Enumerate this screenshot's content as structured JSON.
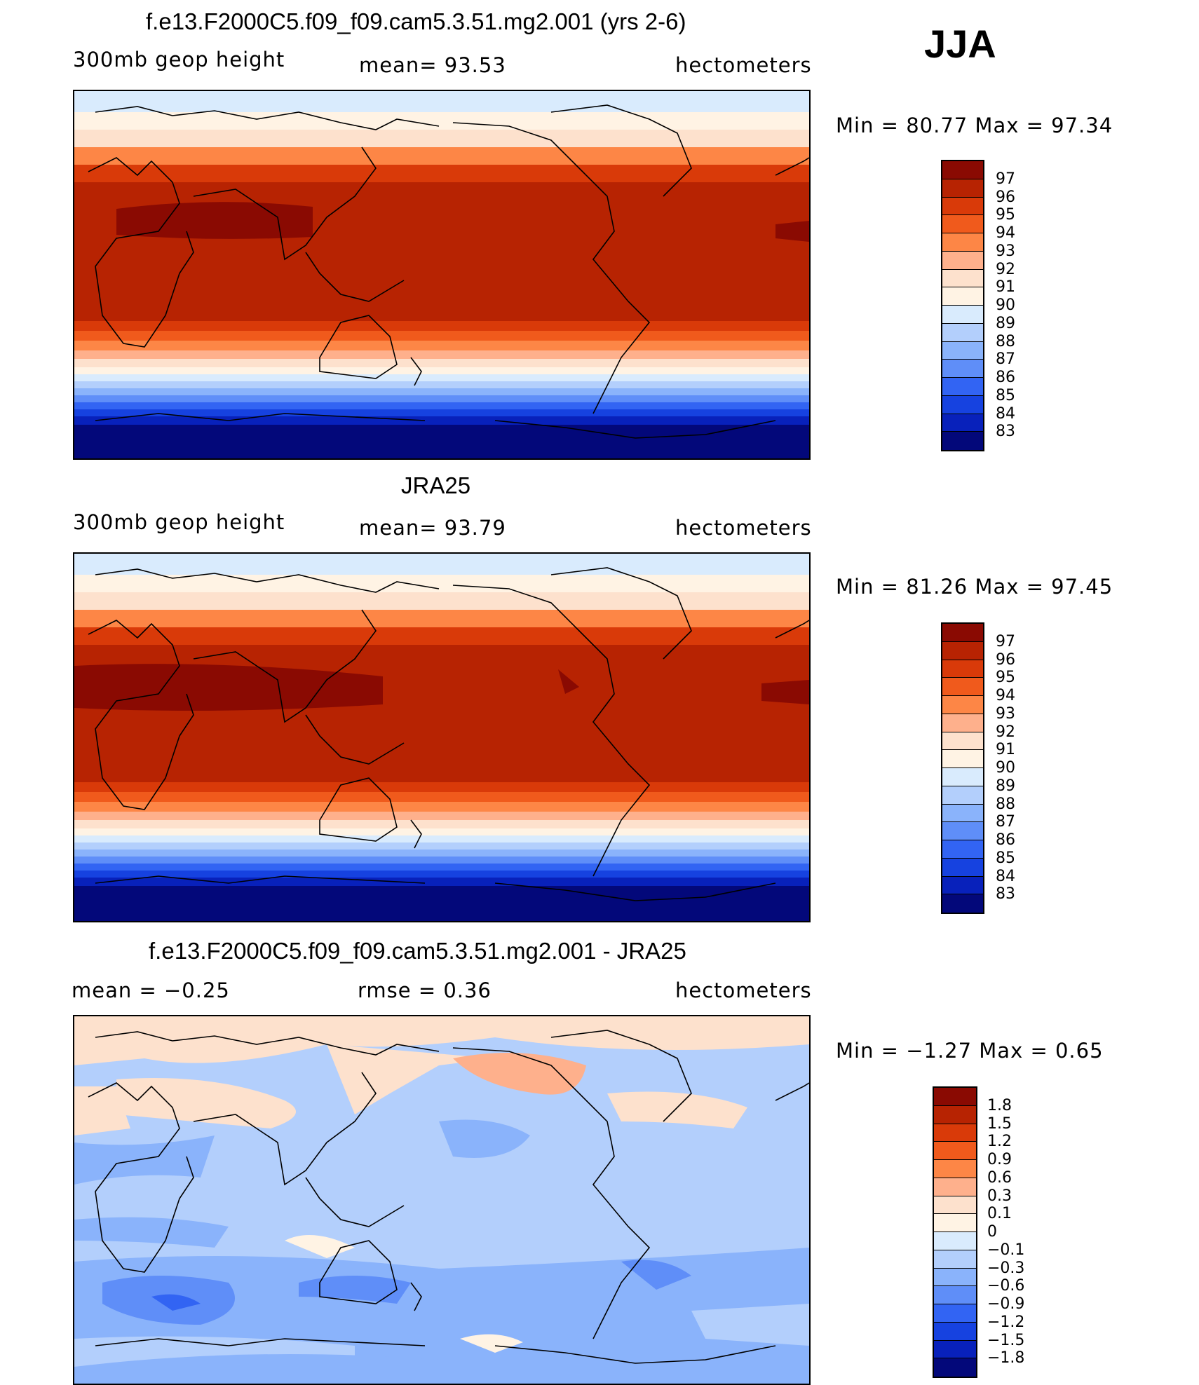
{
  "season": "JJA",
  "panels": [
    {
      "title": "f.e13.F2000C5.f09_f09.cam5.3.51.mg2.001 (yrs 2-6)",
      "left_label": "300mb  geop  height",
      "center_label": "mean=   93.53",
      "right_label": "hectometers",
      "range_text": "Min  =    80.77  Max  =    97.34",
      "map": {
        "base_color": "#b72302",
        "south_color": "#03087a"
      },
      "colorbar": {
        "colors": [
          "#8a0a02",
          "#b72302",
          "#d93a09",
          "#f05a1c",
          "#fd8646",
          "#feb08c",
          "#fde1cd",
          "#fff3e4",
          "#d9ebfd",
          "#b3cffc",
          "#8ab3fb",
          "#5f8ef8",
          "#3264f3",
          "#1642e0",
          "#0821bb",
          "#03087a"
        ],
        "labels": [
          "97",
          "96",
          "95",
          "94",
          "93",
          "92",
          "91",
          "90",
          "89",
          "88",
          "87",
          "86",
          "85",
          "84",
          "83"
        ]
      }
    },
    {
      "title": "JRA25",
      "left_label": "300mb  geop  height",
      "center_label": "mean=   93.79",
      "right_label": "hectometers",
      "range_text": "Min  =    81.26  Max  =    97.45",
      "map": {
        "base_color": "#b72302",
        "south_color": "#03087a"
      },
      "colorbar": {
        "colors": [
          "#8a0a02",
          "#b72302",
          "#d93a09",
          "#f05a1c",
          "#fd8646",
          "#feb08c",
          "#fde1cd",
          "#fff3e4",
          "#d9ebfd",
          "#b3cffc",
          "#8ab3fb",
          "#5f8ef8",
          "#3264f3",
          "#1642e0",
          "#0821bb",
          "#03087a"
        ],
        "labels": [
          "97",
          "96",
          "95",
          "94",
          "93",
          "92",
          "91",
          "90",
          "89",
          "88",
          "87",
          "86",
          "85",
          "84",
          "83"
        ]
      }
    },
    {
      "title": "f.e13.F2000C5.f09_f09.cam5.3.51.mg2.001 - JRA25",
      "left_label": "mean  =    −0.25",
      "center_label": "rmse  =     0.36",
      "right_label": "hectometers",
      "range_text": "Min  =    −1.27  Max  =       0.65",
      "map": {
        "base_color": "#b3cffc",
        "south_color": "#5f8ef8"
      },
      "colorbar": {
        "colors": [
          "#8a0a02",
          "#b72302",
          "#d93a09",
          "#f05a1c",
          "#fd8646",
          "#feb08c",
          "#fde1cd",
          "#fff3e4",
          "#d9ebfd",
          "#b3cffc",
          "#8ab3fb",
          "#5f8ef8",
          "#3264f3",
          "#1642e0",
          "#0821bb",
          "#03087a"
        ],
        "labels": [
          "1.8",
          "1.5",
          "1.2",
          "0.9",
          "0.6",
          "0.3",
          "0.1",
          "0",
          "−0.1",
          "−0.3",
          "−0.6",
          "−0.9",
          "−1.2",
          "−1.5",
          "−1.8"
        ]
      }
    }
  ]
}
